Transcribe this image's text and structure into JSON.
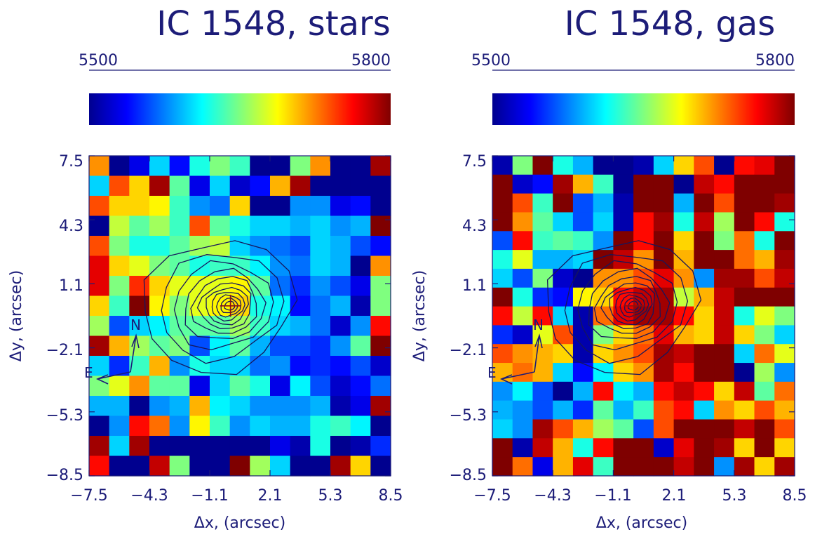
{
  "chart_data": [
    {
      "type": "heatmap",
      "title": "IC 1548, stars",
      "colorbar": {
        "min": 5500,
        "max": 5800,
        "min_label": "5500",
        "max_label": "5800",
        "colormap": "jet"
      },
      "xlabel": "Δx, (arcsec)",
      "ylabel": "Δy, (arcsec)",
      "xlim": [
        -7.5,
        8.5
      ],
      "ylim": [
        -8.5,
        7.5
      ],
      "xticks": [
        "−7.5",
        "−4.3",
        "−1.1",
        "2.1",
        "5.3",
        "8.5"
      ],
      "yticks": [
        "7.5",
        "4.3",
        "1.1",
        "−2.1",
        "−5.3",
        "−8.5"
      ],
      "compass": {
        "north": "N",
        "east": "E"
      },
      "grid": [
        [
          5720,
          5500,
          5530,
          5600,
          5540,
          5620,
          5650,
          5630,
          5500,
          5500,
          5650,
          5720,
          5500,
          5500,
          5790
        ],
        [
          5600,
          5740,
          5700,
          5790,
          5640,
          5530,
          5600,
          5520,
          5540,
          5710,
          5790,
          5500,
          5500,
          5500,
          5500
        ],
        [
          5740,
          5700,
          5700,
          5690,
          5630,
          5580,
          5570,
          5700,
          5500,
          5500,
          5580,
          5580,
          5530,
          5540,
          5500
        ],
        [
          5500,
          5670,
          5640,
          5660,
          5630,
          5740,
          5640,
          5620,
          5600,
          5600,
          5590,
          5600,
          5580,
          5590,
          5800
        ],
        [
          5740,
          5650,
          5620,
          5620,
          5640,
          5660,
          5670,
          5600,
          5580,
          5570,
          5560,
          5600,
          5590,
          5560,
          5540
        ],
        [
          5770,
          5700,
          5680,
          5650,
          5640,
          5620,
          5630,
          5630,
          5610,
          5580,
          5570,
          5600,
          5590,
          5500,
          5720
        ],
        [
          5770,
          5650,
          5750,
          5700,
          5680,
          5680,
          5680,
          5690,
          5640,
          5570,
          5550,
          5580,
          5560,
          5530,
          5650
        ],
        [
          5700,
          5630,
          5800,
          5690,
          5650,
          5680,
          5690,
          5700,
          5620,
          5610,
          5540,
          5570,
          5590,
          5510,
          5650
        ],
        [
          5660,
          5560,
          5600,
          5610,
          5640,
          5640,
          5640,
          5660,
          5630,
          5600,
          5590,
          5570,
          5520,
          5580,
          5760
        ],
        [
          5790,
          5710,
          5660,
          5640,
          5650,
          5560,
          5610,
          5640,
          5590,
          5560,
          5560,
          5550,
          5580,
          5640,
          5800
        ],
        [
          5600,
          5550,
          5630,
          5710,
          5580,
          5620,
          5600,
          5600,
          5570,
          5580,
          5540,
          5550,
          5540,
          5560,
          5520
        ],
        [
          5650,
          5680,
          5720,
          5640,
          5640,
          5530,
          5600,
          5640,
          5620,
          5530,
          5610,
          5560,
          5520,
          5540,
          5570
        ],
        [
          5590,
          5590,
          5500,
          5580,
          5590,
          5710,
          5610,
          5600,
          5580,
          5580,
          5580,
          5590,
          5510,
          5530,
          5790
        ],
        [
          5500,
          5580,
          5760,
          5730,
          5580,
          5690,
          5630,
          5580,
          5600,
          5590,
          5590,
          5620,
          5630,
          5610,
          5500
        ],
        [
          5790,
          5600,
          5790,
          5500,
          5500,
          5500,
          5500,
          5500,
          5500,
          5530,
          5510,
          5620,
          5500,
          5510,
          5550
        ],
        [
          5760,
          5500,
          5500,
          5780,
          5650,
          5500,
          5500,
          5800,
          5660,
          5600,
          5500,
          5500,
          5790,
          5700,
          5500
        ]
      ]
    },
    {
      "type": "heatmap",
      "title": "IC 1548, gas",
      "colorbar": {
        "min": 5500,
        "max": 5800,
        "min_label": "5500",
        "max_label": "5800",
        "colormap": "jet"
      },
      "xlabel": "Δx, (arcsec)",
      "ylabel": "Δy, (arcsec)",
      "xlim": [
        -7.5,
        8.5
      ],
      "ylim": [
        -8.5,
        7.5
      ],
      "xticks": [
        "−7.5",
        "−4.3",
        "−1.1",
        "2.1",
        "5.3",
        "8.5"
      ],
      "yticks": [
        "7.5",
        "4.3",
        "1.1",
        "−2.1",
        "−5.3",
        "−8.5"
      ],
      "compass": {
        "north": "N",
        "east": "E"
      },
      "grid": [
        [
          5510,
          5650,
          5800,
          5620,
          5590,
          5500,
          5500,
          5510,
          5600,
          5700,
          5740,
          5500,
          5760,
          5770,
          5800
        ],
        [
          5800,
          5520,
          5540,
          5790,
          5710,
          5630,
          5500,
          5800,
          5800,
          5500,
          5780,
          5760,
          5800,
          5800,
          5800
        ],
        [
          5800,
          5740,
          5630,
          5800,
          5560,
          5590,
          5510,
          5800,
          5800,
          5590,
          5800,
          5740,
          5800,
          5800,
          5790
        ],
        [
          5800,
          5720,
          5640,
          5600,
          5560,
          5600,
          5510,
          5760,
          5790,
          5620,
          5780,
          5660,
          5800,
          5760,
          5620
        ],
        [
          5560,
          5760,
          5630,
          5640,
          5630,
          5580,
          5800,
          5760,
          5800,
          5700,
          5800,
          5650,
          5730,
          5620,
          5800
        ],
        [
          5620,
          5680,
          5590,
          5590,
          5600,
          5800,
          5780,
          5720,
          5800,
          5710,
          5800,
          5800,
          5730,
          5710,
          5790
        ],
        [
          5600,
          5560,
          5650,
          5520,
          5500,
          5720,
          5720,
          5740,
          5770,
          5720,
          5580,
          5790,
          5790,
          5740,
          5780
        ],
        [
          5800,
          5620,
          5550,
          5540,
          5690,
          5700,
          5760,
          5780,
          5790,
          5670,
          5710,
          5780,
          5800,
          5800,
          5800
        ],
        [
          5760,
          5670,
          5760,
          5600,
          5510,
          5730,
          5770,
          5790,
          5790,
          5760,
          5700,
          5780,
          5620,
          5680,
          5650
        ],
        [
          5550,
          5520,
          5680,
          5740,
          5510,
          5650,
          5700,
          5730,
          5770,
          5710,
          5700,
          5780,
          5700,
          5650,
          5600
        ],
        [
          5740,
          5720,
          5710,
          5700,
          5510,
          5700,
          5720,
          5740,
          5790,
          5780,
          5800,
          5800,
          5600,
          5730,
          5680
        ],
        [
          5710,
          5730,
          5710,
          5600,
          5540,
          5610,
          5700,
          5720,
          5790,
          5760,
          5800,
          5800,
          5500,
          5660,
          5580
        ],
        [
          5580,
          5610,
          5560,
          5500,
          5590,
          5760,
          5610,
          5590,
          5760,
          5780,
          5760,
          5700,
          5780,
          5640,
          5730
        ],
        [
          5590,
          5580,
          5560,
          5590,
          5550,
          5640,
          5590,
          5630,
          5740,
          5760,
          5600,
          5720,
          5700,
          5740,
          5710
        ],
        [
          5600,
          5580,
          5790,
          5740,
          5710,
          5660,
          5640,
          5560,
          5740,
          5800,
          5800,
          5800,
          5780,
          5800,
          5740
        ],
        [
          5800,
          5510,
          5780,
          5710,
          5620,
          5760,
          5800,
          5800,
          5520,
          5770,
          5800,
          5790,
          5700,
          5800,
          5700
        ],
        [
          5800,
          5730,
          5530,
          5710,
          5770,
          5630,
          5800,
          5800,
          5800,
          5780,
          5800,
          5580,
          5790,
          5700,
          5790
        ]
      ]
    }
  ]
}
